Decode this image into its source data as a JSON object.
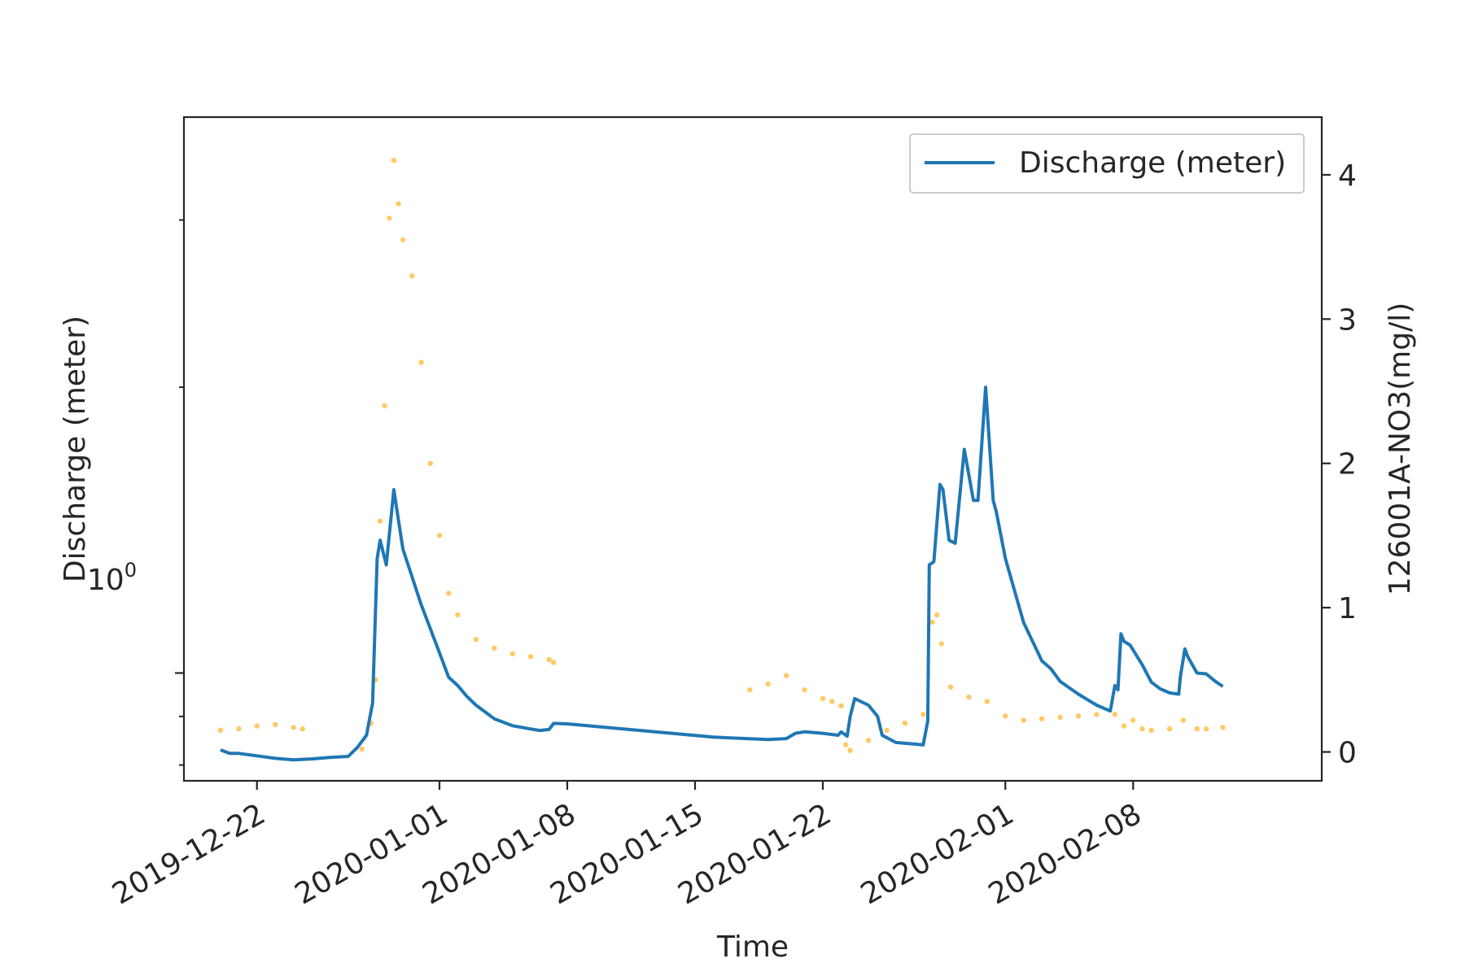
{
  "chart_data": {
    "type": "line",
    "xlabel": "Time",
    "ylabel_left": "Discharge (meter)",
    "ylabel_right": "126001A-NO3(mg/l)",
    "x_range": [
      "2019-12-18T00:00",
      "2020-02-18T08:00"
    ],
    "x_ticks": [
      "2019-12-22",
      "2020-01-01",
      "2020-01-08",
      "2020-01-15",
      "2020-01-22",
      "2020-02-01",
      "2020-02-08"
    ],
    "left_axis": {
      "scale": "log",
      "range": [
        0.77,
        3.85
      ],
      "major_tick": 1.0,
      "major_label_base": "10",
      "major_label_exp": "0"
    },
    "right_axis": {
      "scale": "linear",
      "range": [
        -0.2,
        4.4
      ],
      "ticks": [
        0,
        1,
        2,
        3,
        4
      ]
    },
    "grid": false,
    "legend": {
      "placement": "upper right",
      "entries": [
        "Discharge (meter)"
      ]
    },
    "colors": {
      "discharge": "#1f77b4",
      "nitrate": "#ffa500",
      "axes": "#262626"
    },
    "series": [
      {
        "name": "Discharge (meter)",
        "axis": "left",
        "style": "line",
        "points": [
          [
            "2019-12-20T00:00",
            0.83
          ],
          [
            "2019-12-20T12:00",
            0.823
          ],
          [
            "2019-12-21T00:00",
            0.823
          ],
          [
            "2019-12-22T00:00",
            0.818
          ],
          [
            "2019-12-23T00:00",
            0.813
          ],
          [
            "2019-12-24T00:00",
            0.81
          ],
          [
            "2019-12-25T00:00",
            0.812
          ],
          [
            "2019-12-26T00:00",
            0.815
          ],
          [
            "2019-12-27T00:00",
            0.817
          ],
          [
            "2019-12-27T12:00",
            0.835
          ],
          [
            "2019-12-28T00:00",
            0.86
          ],
          [
            "2019-12-28T08:00",
            0.93
          ],
          [
            "2019-12-28T14:00",
            1.32
          ],
          [
            "2019-12-28T18:00",
            1.38
          ],
          [
            "2019-12-29T02:00",
            1.3
          ],
          [
            "2019-12-29T08:00",
            1.45
          ],
          [
            "2019-12-29T12:00",
            1.56
          ],
          [
            "2019-12-29T18:00",
            1.45
          ],
          [
            "2019-12-30T00:00",
            1.35
          ],
          [
            "2019-12-31T00:00",
            1.18
          ],
          [
            "2020-01-01T00:00",
            1.05
          ],
          [
            "2020-01-01T12:00",
            0.99
          ],
          [
            "2020-01-02T00:00",
            0.97
          ],
          [
            "2020-01-02T12:00",
            0.945
          ],
          [
            "2020-01-03T00:00",
            0.925
          ],
          [
            "2020-01-04T00:00",
            0.895
          ],
          [
            "2020-01-05T00:00",
            0.88
          ],
          [
            "2020-01-06T00:00",
            0.873
          ],
          [
            "2020-01-06T12:00",
            0.87
          ],
          [
            "2020-01-07T00:00",
            0.872
          ],
          [
            "2020-01-07T06:00",
            0.885
          ],
          [
            "2020-01-08T00:00",
            0.884
          ],
          [
            "2020-01-12T00:00",
            0.87
          ],
          [
            "2020-01-16T00:00",
            0.856
          ],
          [
            "2020-01-19T00:00",
            0.851
          ],
          [
            "2020-01-20T00:00",
            0.853
          ],
          [
            "2020-01-20T12:00",
            0.864
          ],
          [
            "2020-01-21T00:00",
            0.867
          ],
          [
            "2020-01-22T00:00",
            0.864
          ],
          [
            "2020-01-22T20:00",
            0.86
          ],
          [
            "2020-01-23T00:00",
            0.867
          ],
          [
            "2020-01-23T08:00",
            0.858
          ],
          [
            "2020-01-23T12:00",
            0.9
          ],
          [
            "2020-01-23T18:00",
            0.94
          ],
          [
            "2020-01-24T12:00",
            0.925
          ],
          [
            "2020-01-25T00:00",
            0.9
          ],
          [
            "2020-01-25T06:00",
            0.86
          ],
          [
            "2020-01-26T00:00",
            0.845
          ],
          [
            "2020-01-27T00:00",
            0.842
          ],
          [
            "2020-01-27T12:00",
            0.84
          ],
          [
            "2020-01-27T18:00",
            0.89
          ],
          [
            "2020-01-27T20:00",
            1.3
          ],
          [
            "2020-01-28T02:00",
            1.31
          ],
          [
            "2020-01-28T10:00",
            1.58
          ],
          [
            "2020-01-28T14:00",
            1.56
          ],
          [
            "2020-01-28T22:00",
            1.38
          ],
          [
            "2020-01-29T06:00",
            1.37
          ],
          [
            "2020-01-29T18:00",
            1.72
          ],
          [
            "2020-01-30T06:00",
            1.52
          ],
          [
            "2020-01-30T12:00",
            1.52
          ],
          [
            "2020-01-30T22:00",
            2.0
          ],
          [
            "2020-01-31T00:00",
            1.9
          ],
          [
            "2020-01-31T08:00",
            1.52
          ],
          [
            "2020-01-31T12:00",
            1.48
          ],
          [
            "2020-02-01T00:00",
            1.32
          ],
          [
            "2020-02-02T00:00",
            1.13
          ],
          [
            "2020-02-03T00:00",
            1.03
          ],
          [
            "2020-02-03T12:00",
            1.01
          ],
          [
            "2020-02-04T00:00",
            0.98
          ],
          [
            "2020-02-05T00:00",
            0.95
          ],
          [
            "2020-02-06T00:00",
            0.925
          ],
          [
            "2020-02-06T18:00",
            0.912
          ],
          [
            "2020-02-07T00:00",
            0.97
          ],
          [
            "2020-02-07T04:00",
            0.96
          ],
          [
            "2020-02-07T08:00",
            1.1
          ],
          [
            "2020-02-07T12:00",
            1.08
          ],
          [
            "2020-02-07T20:00",
            1.07
          ],
          [
            "2020-02-08T12:00",
            1.02
          ],
          [
            "2020-02-09T00:00",
            0.978
          ],
          [
            "2020-02-09T12:00",
            0.962
          ],
          [
            "2020-02-10T00:00",
            0.953
          ],
          [
            "2020-02-10T12:00",
            0.95
          ],
          [
            "2020-02-10T14:00",
            0.99
          ],
          [
            "2020-02-10T20:00",
            1.06
          ],
          [
            "2020-02-11T00:00",
            1.04
          ],
          [
            "2020-02-11T12:00",
            1.0
          ],
          [
            "2020-02-12T00:00",
            0.998
          ],
          [
            "2020-02-12T12:00",
            0.98
          ],
          [
            "2020-02-12T22:00",
            0.968
          ]
        ]
      },
      {
        "name": "",
        "axis": "right",
        "style": "scatter",
        "points": [
          [
            "2019-12-20T00:00",
            0.15
          ],
          [
            "2019-12-21T00:00",
            0.16
          ],
          [
            "2019-12-22T00:00",
            0.18
          ],
          [
            "2019-12-23T00:00",
            0.19
          ],
          [
            "2019-12-24T00:00",
            0.17
          ],
          [
            "2019-12-24T12:00",
            0.16
          ],
          [
            "2019-12-27T18:00",
            0.02
          ],
          [
            "2019-12-28T06:00",
            0.2
          ],
          [
            "2019-12-28T12:00",
            0.5
          ],
          [
            "2019-12-28T18:00",
            1.6
          ],
          [
            "2019-12-29T00:00",
            2.4
          ],
          [
            "2019-12-29T06:00",
            3.7
          ],
          [
            "2019-12-29T12:00",
            4.1
          ],
          [
            "2019-12-29T18:00",
            3.8
          ],
          [
            "2019-12-30T00:00",
            3.55
          ],
          [
            "2019-12-30T12:00",
            3.3
          ],
          [
            "2019-12-31T00:00",
            2.7
          ],
          [
            "2019-12-31T12:00",
            2.0
          ],
          [
            "2020-01-01T00:00",
            1.5
          ],
          [
            "2020-01-01T12:00",
            1.1
          ],
          [
            "2020-01-02T00:00",
            0.95
          ],
          [
            "2020-01-03T00:00",
            0.78
          ],
          [
            "2020-01-04T00:00",
            0.72
          ],
          [
            "2020-01-05T00:00",
            0.68
          ],
          [
            "2020-01-06T00:00",
            0.66
          ],
          [
            "2020-01-07T00:00",
            0.64
          ],
          [
            "2020-01-07T06:00",
            0.62
          ],
          [
            "2020-01-18T00:00",
            0.43
          ],
          [
            "2020-01-19T00:00",
            0.47
          ],
          [
            "2020-01-20T00:00",
            0.53
          ],
          [
            "2020-01-21T00:00",
            0.43
          ],
          [
            "2020-01-22T00:00",
            0.37
          ],
          [
            "2020-01-22T12:00",
            0.35
          ],
          [
            "2020-01-23T00:00",
            0.32
          ],
          [
            "2020-01-23T06:00",
            0.05
          ],
          [
            "2020-01-23T12:00",
            0.01
          ],
          [
            "2020-01-24T12:00",
            0.08
          ],
          [
            "2020-01-25T12:00",
            0.15
          ],
          [
            "2020-01-26T12:00",
            0.2
          ],
          [
            "2020-01-27T12:00",
            0.26
          ],
          [
            "2020-01-28T00:00",
            0.9
          ],
          [
            "2020-01-28T06:00",
            0.95
          ],
          [
            "2020-01-28T12:00",
            0.75
          ],
          [
            "2020-01-29T00:00",
            0.45
          ],
          [
            "2020-01-30T00:00",
            0.38
          ],
          [
            "2020-01-31T00:00",
            0.35
          ],
          [
            "2020-02-01T00:00",
            0.25
          ],
          [
            "2020-02-02T00:00",
            0.22
          ],
          [
            "2020-02-03T00:00",
            0.23
          ],
          [
            "2020-02-04T00:00",
            0.24
          ],
          [
            "2020-02-05T00:00",
            0.25
          ],
          [
            "2020-02-06T00:00",
            0.26
          ],
          [
            "2020-02-07T00:00",
            0.26
          ],
          [
            "2020-02-07T12:00",
            0.18
          ],
          [
            "2020-02-08T00:00",
            0.22
          ],
          [
            "2020-02-08T12:00",
            0.16
          ],
          [
            "2020-02-09T00:00",
            0.15
          ],
          [
            "2020-02-10T00:00",
            0.16
          ],
          [
            "2020-02-10T18:00",
            0.22
          ],
          [
            "2020-02-11T12:00",
            0.16
          ],
          [
            "2020-02-12T00:00",
            0.16
          ],
          [
            "2020-02-12T22:00",
            0.17
          ]
        ]
      }
    ]
  }
}
